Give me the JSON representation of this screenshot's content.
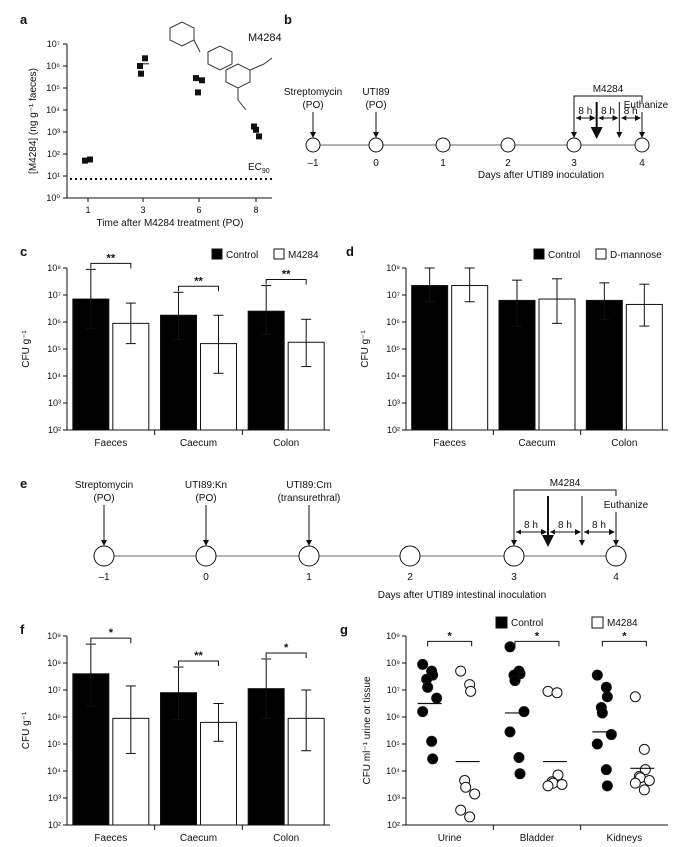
{
  "panels": {
    "a": {
      "letter": "a"
    },
    "b": {
      "letter": "b"
    },
    "c": {
      "letter": "c"
    },
    "d": {
      "letter": "d"
    },
    "e": {
      "letter": "e"
    },
    "f": {
      "letter": "f"
    },
    "g": {
      "letter": "g"
    }
  },
  "chart_data": [
    {
      "id": "a",
      "type": "scatter",
      "xlabel": "Time after M4284 treatment (PO)",
      "ylabel": "[M4284] (ng g⁻¹ faeces)",
      "x_ticks": [
        "1",
        "3",
        "6",
        "8"
      ],
      "y_ticks": [
        "10⁰",
        "10¹",
        "10²",
        "10³",
        "10⁴",
        "10⁵",
        "10⁶",
        "10⁷"
      ],
      "ylim_log10": [
        0,
        7
      ],
      "compound_label": "M4284",
      "ec90_label": "EC",
      "ec90_sub": "90",
      "ec90_log10": 0.85,
      "points": [
        {
          "x": 1,
          "y_log10": 1.7
        },
        {
          "x": 1,
          "y_log10": 1.75
        },
        {
          "x": 3,
          "y_log10": 5.65
        },
        {
          "x": 3,
          "y_log10": 6.35
        },
        {
          "x": 3,
          "y_log10": 6.0
        },
        {
          "x": 6,
          "y_log10": 5.45
        },
        {
          "x": 6,
          "y_log10": 5.35
        },
        {
          "x": 6,
          "y_log10": 4.8
        },
        {
          "x": 8,
          "y_log10": 3.25
        },
        {
          "x": 8,
          "y_log10": 2.8
        },
        {
          "x": 8,
          "y_log10": 3.1
        }
      ],
      "means_log10": [
        {
          "x": 3,
          "y_log10": 6.1
        }
      ]
    },
    {
      "id": "c",
      "type": "bar",
      "ylabel": "CFU g⁻¹",
      "categories": [
        "Faeces",
        "Caecum",
        "Colon"
      ],
      "y_ticks": [
        "10²",
        "10³",
        "10⁴",
        "10⁵",
        "10⁶",
        "10⁷",
        "10⁸"
      ],
      "ylim_log10": [
        2,
        8
      ],
      "legend": [
        "Control",
        "M4284"
      ],
      "series": [
        {
          "name": "Control",
          "values_log10": [
            6.85,
            6.25,
            6.4
          ],
          "err_low_log10": [
            5.75,
            5.35,
            5.55
          ],
          "err_high_log10": [
            7.95,
            7.1,
            7.35
          ]
        },
        {
          "name": "M4284",
          "values_log10": [
            5.95,
            5.2,
            5.25
          ],
          "err_low_log10": [
            5.2,
            4.1,
            4.35
          ],
          "err_high_log10": [
            6.7,
            6.25,
            6.1
          ]
        }
      ],
      "significance": [
        "**",
        "**",
        "**"
      ]
    },
    {
      "id": "d",
      "type": "bar",
      "ylabel": "CFU g⁻¹",
      "categories": [
        "Faeces",
        "Caecum",
        "Colon"
      ],
      "y_ticks": [
        "10²",
        "10³",
        "10⁴",
        "10⁵",
        "10⁶",
        "10⁷",
        "10⁸"
      ],
      "ylim_log10": [
        2,
        8
      ],
      "legend": [
        "Control",
        "D-mannose"
      ],
      "series": [
        {
          "name": "Control",
          "values_log10": [
            7.35,
            6.8,
            6.8
          ],
          "err_low_log10": [
            6.75,
            5.85,
            6.1
          ],
          "err_high_log10": [
            8.0,
            7.55,
            7.45
          ]
        },
        {
          "name": "D-mannose",
          "values_log10": [
            7.35,
            6.85,
            6.65
          ],
          "err_low_log10": [
            6.75,
            5.95,
            5.85
          ],
          "err_high_log10": [
            8.0,
            7.6,
            7.4
          ]
        }
      ],
      "significance": []
    },
    {
      "id": "f",
      "type": "bar",
      "ylabel": "CFU g⁻¹",
      "categories": [
        "Faeces",
        "Caecum",
        "Colon"
      ],
      "y_ticks": [
        "10²",
        "10³",
        "10⁴",
        "10⁵",
        "10⁶",
        "10⁷",
        "10⁸",
        "10⁹"
      ],
      "ylim_log10": [
        2,
        9
      ],
      "legend": [],
      "series": [
        {
          "name": "Control",
          "values_log10": [
            7.6,
            6.9,
            7.05
          ],
          "err_low_log10": [
            6.4,
            5.9,
            5.95
          ],
          "err_high_log10": [
            8.7,
            7.85,
            8.15
          ]
        },
        {
          "name": "M4284",
          "values_log10": [
            5.95,
            5.8,
            5.95
          ],
          "err_low_log10": [
            4.65,
            5.1,
            4.75
          ],
          "err_high_log10": [
            7.15,
            6.5,
            7.0
          ]
        }
      ],
      "significance": [
        "*",
        "**",
        "*"
      ]
    },
    {
      "id": "g",
      "type": "scatter",
      "ylabel": "CFU ml⁻¹ urine or tissue",
      "categories": [
        "Urine",
        "Bladder",
        "Kidneys"
      ],
      "y_ticks": [
        "10²",
        "10³",
        "10⁴",
        "10⁵",
        "10⁶",
        "10⁷",
        "10⁸",
        "10⁹"
      ],
      "ylim_log10": [
        2,
        9
      ],
      "legend": [
        "Control",
        "M4284"
      ],
      "significance": [
        "*",
        "*",
        "*"
      ],
      "series": [
        {
          "name": "Control",
          "groups": [
            [
              7.95,
              7.7,
              7.55,
              7.4,
              7.1,
              6.7,
              6.2,
              5.1,
              4.45
            ],
            [
              8.6,
              7.7,
              7.6,
              7.55,
              7.35,
              6.2,
              5.45,
              4.5,
              3.9
            ],
            [
              7.55,
              7.1,
              6.75,
              6.35,
              6.15,
              5.35,
              5.0,
              4.05,
              3.45
            ]
          ],
          "means": [
            6.5,
            6.15,
            5.45
          ]
        },
        {
          "name": "M4284",
          "groups": [
            [
              7.7,
              7.2,
              6.95,
              3.65,
              3.4,
              3.15,
              2.55,
              2.3
            ],
            [
              6.95,
              6.9,
              3.85,
              3.6,
              3.55,
              3.5,
              3.45
            ],
            [
              6.75,
              4.8,
              4.05,
              3.8,
              3.75,
              3.65,
              3.55,
              3.3
            ]
          ],
          "means": [
            4.35,
            4.35,
            4.1
          ]
        }
      ]
    }
  ],
  "timeline_b": {
    "xlabel": "Days after UTI89 inoculation",
    "days": [
      "–1",
      "0",
      "1",
      "2",
      "3",
      "4"
    ],
    "events": [
      {
        "label1": "Streptomycin",
        "label2": "(PO)"
      },
      {
        "label1": "UTI89",
        "label2": "(PO)"
      }
    ],
    "m4284": "M4284",
    "euthanize": "Euthanize",
    "intervals": [
      "8 h",
      "8 h",
      "8 h"
    ]
  },
  "timeline_e": {
    "xlabel": "Days after UTI89 intestinal inoculation",
    "days": [
      "–1",
      "0",
      "1",
      "2",
      "3",
      "4"
    ],
    "events": [
      {
        "label1": "Streptomycin",
        "label2": "(PO)"
      },
      {
        "label1": "UTI89:Kn",
        "label2": "(PO)"
      },
      {
        "label1": "UTI89:Cm",
        "label2": "(transurethral)"
      }
    ],
    "m4284": "M4284",
    "euthanize": "Euthanize",
    "intervals": [
      "8 h",
      "8 h",
      "8 h"
    ]
  },
  "colors": {
    "control": "#000000",
    "treated": "#ffffff",
    "timeline": "#999999"
  }
}
